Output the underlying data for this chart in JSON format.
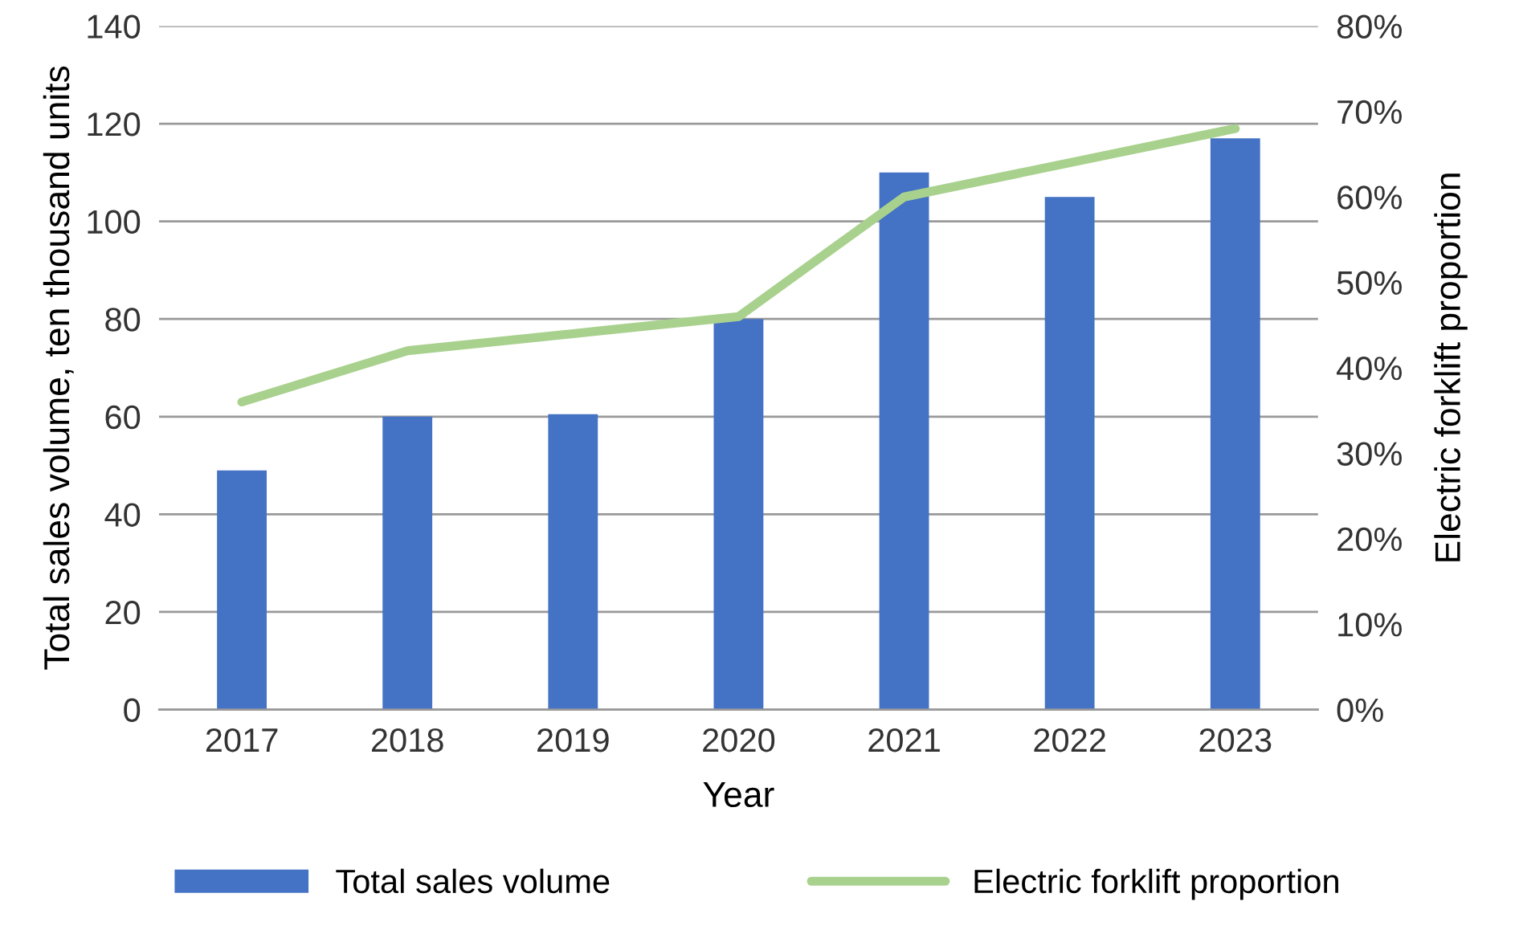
{
  "chart_data": {
    "type": "bar",
    "xlabel": "Year",
    "ylabel": "Total sales volume, ten thousand units",
    "y2label": "Electric forklift proportion",
    "categories": [
      "2017",
      "2018",
      "2019",
      "2020",
      "2021",
      "2022",
      "2023"
    ],
    "series": [
      {
        "name": "Total sales volume",
        "color": "#4472c4",
        "values": [
          49,
          60,
          60.5,
          80,
          110,
          105,
          117
        ]
      },
      {
        "name": "Electric forklift proportion",
        "type": "line",
        "axis": "y2",
        "color": "#a9d18e",
        "values": [
          36,
          42,
          44,
          46,
          60,
          64,
          68
        ]
      }
    ],
    "ylim": [
      0,
      140
    ],
    "yticks": [
      0,
      20,
      40,
      60,
      80,
      100,
      120,
      140
    ],
    "y2lim": [
      0,
      80
    ],
    "y2ticks": [
      {
        "value": 0,
        "label": "0%"
      },
      {
        "value": 10,
        "label": "10%"
      },
      {
        "value": 20,
        "label": "20%"
      },
      {
        "value": 30,
        "label": "30%"
      },
      {
        "value": 40,
        "label": "40%"
      },
      {
        "value": 50,
        "label": "50%"
      },
      {
        "value": 60,
        "label": "60%"
      },
      {
        "value": 70,
        "label": "70%"
      },
      {
        "value": 80,
        "label": "80%"
      }
    ],
    "grid": "y",
    "legend": "bottom",
    "marker": "none",
    "line_style": "solid"
  }
}
